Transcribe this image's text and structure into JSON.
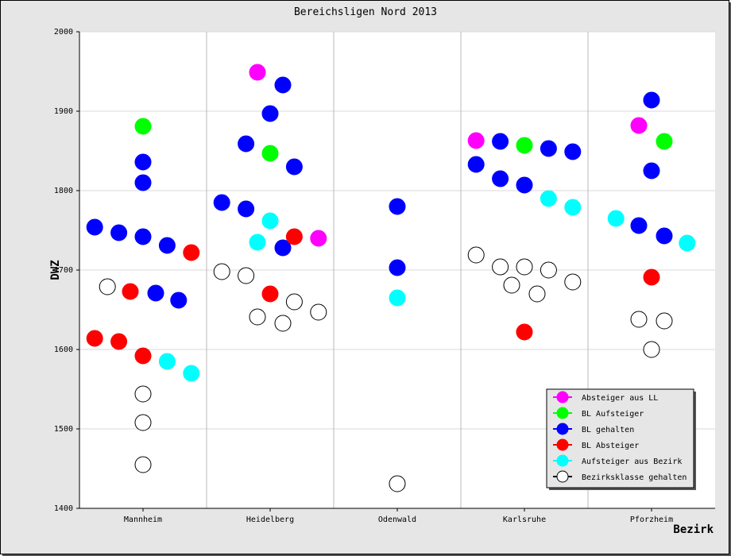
{
  "chart_data": {
    "type": "scatter",
    "title": "Bereichsligen Nord 2013",
    "xlabel": "Bezirk",
    "ylabel": "DWZ",
    "categories": [
      "Mannheim",
      "Heidelberg",
      "Odenwald",
      "Karlsruhe",
      "Pforzheim"
    ],
    "ylim": [
      1400,
      2000
    ],
    "yticks": [
      1400,
      1500,
      1600,
      1700,
      1800,
      1900,
      2000
    ],
    "grid": true,
    "legend_position": "bottom-right",
    "series": [
      {
        "name": "Absteiger aus LL",
        "color": "#ff00ff",
        "fill": true,
        "points": [
          {
            "category": "Heidelberg",
            "offset": -0.1,
            "y": 1949
          },
          {
            "category": "Heidelberg",
            "offset": 0.38,
            "y": 1740
          },
          {
            "category": "Karlsruhe",
            "offset": -0.38,
            "y": 1863
          },
          {
            "category": "Pforzheim",
            "offset": -0.1,
            "y": 1882
          }
        ]
      },
      {
        "name": "BL Aufsteiger",
        "color": "#00ff00",
        "fill": true,
        "points": [
          {
            "category": "Mannheim",
            "offset": 0,
            "y": 1881
          },
          {
            "category": "Heidelberg",
            "offset": 0,
            "y": 1847
          },
          {
            "category": "Karlsruhe",
            "offset": 0,
            "y": 1857
          },
          {
            "category": "Pforzheim",
            "offset": 0.1,
            "y": 1862
          }
        ]
      },
      {
        "name": "BL gehalten",
        "color": "#0000ff",
        "fill": true,
        "points": [
          {
            "category": "Mannheim",
            "offset": 0,
            "y": 1836
          },
          {
            "category": "Mannheim",
            "offset": 0,
            "y": 1810
          },
          {
            "category": "Mannheim",
            "offset": -0.38,
            "y": 1754
          },
          {
            "category": "Mannheim",
            "offset": -0.19,
            "y": 1747
          },
          {
            "category": "Mannheim",
            "offset": 0,
            "y": 1742
          },
          {
            "category": "Mannheim",
            "offset": 0.19,
            "y": 1731
          },
          {
            "category": "Mannheim",
            "offset": 0.1,
            "y": 1671
          },
          {
            "category": "Mannheim",
            "offset": 0.28,
            "y": 1662
          },
          {
            "category": "Heidelberg",
            "offset": 0.1,
            "y": 1933
          },
          {
            "category": "Heidelberg",
            "offset": 0,
            "y": 1897
          },
          {
            "category": "Heidelberg",
            "offset": -0.19,
            "y": 1859
          },
          {
            "category": "Heidelberg",
            "offset": 0.19,
            "y": 1830
          },
          {
            "category": "Heidelberg",
            "offset": -0.38,
            "y": 1785
          },
          {
            "category": "Heidelberg",
            "offset": -0.19,
            "y": 1777
          },
          {
            "category": "Heidelberg",
            "offset": 0.1,
            "y": 1728
          },
          {
            "category": "Odenwald",
            "offset": 0,
            "y": 1780
          },
          {
            "category": "Odenwald",
            "offset": 0,
            "y": 1703
          },
          {
            "category": "Karlsruhe",
            "offset": -0.19,
            "y": 1862
          },
          {
            "category": "Karlsruhe",
            "offset": 0.19,
            "y": 1853
          },
          {
            "category": "Karlsruhe",
            "offset": 0.38,
            "y": 1849
          },
          {
            "category": "Karlsruhe",
            "offset": -0.38,
            "y": 1833
          },
          {
            "category": "Karlsruhe",
            "offset": -0.19,
            "y": 1815
          },
          {
            "category": "Karlsruhe",
            "offset": 0,
            "y": 1807
          },
          {
            "category": "Pforzheim",
            "offset": 0,
            "y": 1914
          },
          {
            "category": "Pforzheim",
            "offset": 0,
            "y": 1825
          },
          {
            "category": "Pforzheim",
            "offset": -0.1,
            "y": 1756
          },
          {
            "category": "Pforzheim",
            "offset": 0.1,
            "y": 1743
          }
        ]
      },
      {
        "name": "BL Absteiger",
        "color": "#ff0000",
        "fill": true,
        "points": [
          {
            "category": "Mannheim",
            "offset": 0.38,
            "y": 1722
          },
          {
            "category": "Mannheim",
            "offset": -0.1,
            "y": 1673
          },
          {
            "category": "Mannheim",
            "offset": -0.38,
            "y": 1614
          },
          {
            "category": "Mannheim",
            "offset": -0.19,
            "y": 1610
          },
          {
            "category": "Mannheim",
            "offset": 0,
            "y": 1592
          },
          {
            "category": "Heidelberg",
            "offset": 0.19,
            "y": 1742
          },
          {
            "category": "Heidelberg",
            "offset": 0,
            "y": 1670
          },
          {
            "category": "Karlsruhe",
            "offset": 0,
            "y": 1622
          },
          {
            "category": "Pforzheim",
            "offset": 0,
            "y": 1691
          }
        ]
      },
      {
        "name": "Aufsteiger aus Bezirk",
        "color": "#00ffff",
        "fill": true,
        "points": [
          {
            "category": "Mannheim",
            "offset": 0.19,
            "y": 1585
          },
          {
            "category": "Mannheim",
            "offset": 0.38,
            "y": 1570
          },
          {
            "category": "Heidelberg",
            "offset": 0,
            "y": 1762
          },
          {
            "category": "Heidelberg",
            "offset": -0.1,
            "y": 1735
          },
          {
            "category": "Odenwald",
            "offset": 0,
            "y": 1665
          },
          {
            "category": "Karlsruhe",
            "offset": 0.19,
            "y": 1790
          },
          {
            "category": "Karlsruhe",
            "offset": 0.38,
            "y": 1779
          },
          {
            "category": "Pforzheim",
            "offset": -0.28,
            "y": 1765
          },
          {
            "category": "Pforzheim",
            "offset": 0.28,
            "y": 1734
          }
        ]
      },
      {
        "name": "Bezirksklasse gehalten",
        "color": "#000000",
        "fill": false,
        "points": [
          {
            "category": "Mannheim",
            "offset": -0.28,
            "y": 1679
          },
          {
            "category": "Mannheim",
            "offset": 0,
            "y": 1544
          },
          {
            "category": "Mannheim",
            "offset": 0,
            "y": 1508
          },
          {
            "category": "Mannheim",
            "offset": 0,
            "y": 1455
          },
          {
            "category": "Heidelberg",
            "offset": -0.38,
            "y": 1698
          },
          {
            "category": "Heidelberg",
            "offset": -0.19,
            "y": 1693
          },
          {
            "category": "Heidelberg",
            "offset": -0.1,
            "y": 1641
          },
          {
            "category": "Heidelberg",
            "offset": 0.1,
            "y": 1633
          },
          {
            "category": "Heidelberg",
            "offset": 0.19,
            "y": 1660
          },
          {
            "category": "Heidelberg",
            "offset": 0.38,
            "y": 1647
          },
          {
            "category": "Odenwald",
            "offset": 0,
            "y": 1431
          },
          {
            "category": "Karlsruhe",
            "offset": -0.38,
            "y": 1719
          },
          {
            "category": "Karlsruhe",
            "offset": -0.19,
            "y": 1704
          },
          {
            "category": "Karlsruhe",
            "offset": 0,
            "y": 1704
          },
          {
            "category": "Karlsruhe",
            "offset": -0.1,
            "y": 1681
          },
          {
            "category": "Karlsruhe",
            "offset": 0.19,
            "y": 1700
          },
          {
            "category": "Karlsruhe",
            "offset": 0.1,
            "y": 1670
          },
          {
            "category": "Karlsruhe",
            "offset": 0.38,
            "y": 1685
          },
          {
            "category": "Pforzheim",
            "offset": -0.1,
            "y": 1638
          },
          {
            "category": "Pforzheim",
            "offset": 0.1,
            "y": 1636
          },
          {
            "category": "Pforzheim",
            "offset": 0,
            "y": 1600
          }
        ]
      }
    ]
  }
}
